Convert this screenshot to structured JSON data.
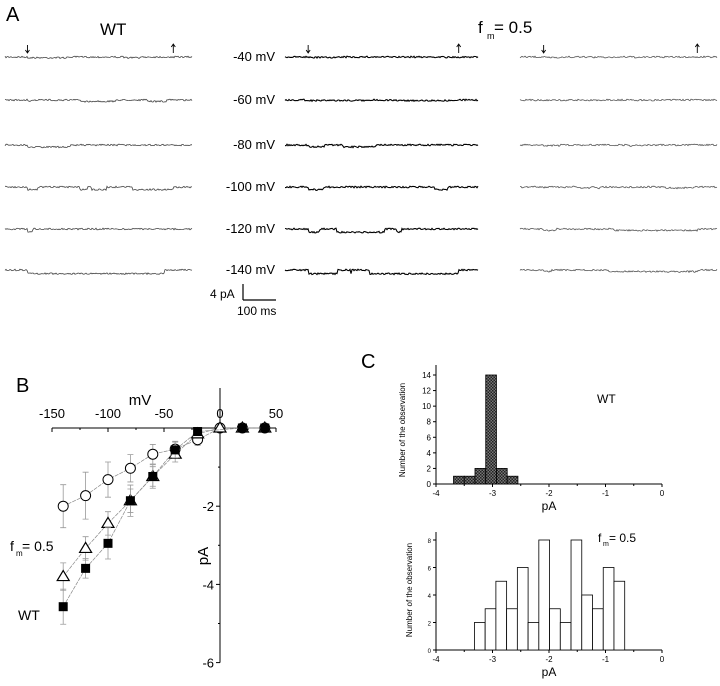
{
  "panel_a": {
    "label": "A",
    "group_labels": [
      "WT",
      "f",
      "m",
      "= 0.5"
    ],
    "voltages": [
      "-40 mV",
      "-60 mV",
      "-80 mV",
      "-100 mV",
      "-120 mV",
      "-140 mV"
    ],
    "scale_current": "4 pA",
    "scale_time": "100 ms"
  },
  "chart_data": [
    {
      "panel": "B",
      "type": "scatter",
      "xlabel": "mV",
      "ylabel": "pA",
      "xlim": [
        -150,
        50
      ],
      "ylim": [
        -6,
        0
      ],
      "xticks": [
        "-150",
        "-100",
        "-50",
        "0",
        "50"
      ],
      "yticks": [
        "-2",
        "-4",
        "-6"
      ],
      "annotations": [
        "f",
        "m",
        "= 0.5",
        "WT"
      ],
      "series": [
        {
          "marker": "open-circle",
          "x": [
            -140,
            -120,
            -100,
            -80,
            -60,
            -40,
            -20,
            0,
            20,
            40
          ],
          "y": [
            -2.0,
            -1.73,
            -1.32,
            -1.03,
            -0.67,
            -0.54,
            -0.3,
            0,
            0,
            0
          ],
          "err": [
            0.55,
            0.6,
            0.45,
            0.35,
            0.25,
            0.2,
            0.15,
            0,
            0,
            0
          ]
        },
        {
          "marker": "open-triangle",
          "x": [
            -140,
            -120,
            -100,
            -80,
            -60,
            -40,
            -20,
            0,
            20,
            40
          ],
          "y": [
            -3.8,
            -3.08,
            -2.44,
            -1.86,
            -1.24,
            -0.67,
            -0.15,
            0,
            0,
            0
          ],
          "err": [
            0.35,
            0.3,
            0.3,
            0.3,
            0.25,
            0.2,
            0.1,
            0,
            0,
            0
          ]
        },
        {
          "marker": "filled-square",
          "x": [
            -140,
            -120,
            -100,
            -80,
            -60,
            -40,
            -20,
            20,
            40
          ],
          "y": [
            -4.57,
            -3.59,
            -2.95,
            -1.86,
            -1.24,
            -0.56,
            -0.09,
            0,
            0
          ],
          "err": [
            0.45,
            0.25,
            0.4,
            0.4,
            0.3,
            0.2,
            0.1,
            0,
            0
          ]
        }
      ]
    },
    {
      "panel": "C",
      "type": "bar",
      "title": "WT",
      "xlabel": "pA",
      "ylabel": "Number of the observation",
      "xlim": [
        -4,
        0
      ],
      "ylim": [
        0,
        15
      ],
      "xticks": [
        "-4",
        "-3",
        "-2",
        "-1",
        "0"
      ],
      "yticks": [
        "0",
        "2",
        "4",
        "6",
        "8",
        "10",
        "12",
        "14"
      ],
      "bin_width": 0.19,
      "bin_starts": [
        -3.69,
        -3.5,
        -3.31,
        -3.12,
        -2.93,
        -2.74
      ],
      "values": [
        1,
        1,
        2,
        14,
        2,
        1
      ],
      "fill": "hatched-dark"
    },
    {
      "panel": "C",
      "type": "bar",
      "title": "f = 0.5",
      "title_parts": [
        "f",
        "m",
        "= 0.5"
      ],
      "xlabel": "pA",
      "ylabel": "Number of the observation",
      "xlim": [
        -4,
        0
      ],
      "ylim": [
        0,
        8.8
      ],
      "xticks": [
        "-4",
        "-3",
        "-2",
        "-1",
        "0"
      ],
      "yticks": [
        "0",
        "2",
        "4",
        "6",
        "8"
      ],
      "bin_width": 0.19,
      "bin_starts": [
        -3.32,
        -3.13,
        -2.94,
        -2.75,
        -2.56,
        -2.37,
        -2.18,
        -1.99,
        -1.8,
        -1.61,
        -1.42,
        -1.23,
        -1.04,
        -0.85
      ],
      "values": [
        2,
        3,
        5,
        3,
        6,
        2,
        8,
        3,
        2,
        8,
        4,
        3,
        6,
        5
      ],
      "fill": "white"
    }
  ],
  "panel_labels": {
    "b": "B",
    "c": "C"
  }
}
